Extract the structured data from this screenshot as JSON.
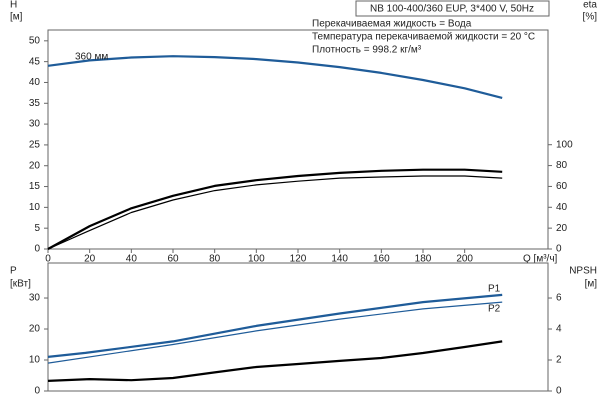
{
  "chart_data": [
    {
      "type": "line",
      "title": "NB 100-400/360 EUP, 3*400 V, 50Hz",
      "info": [
        "Перекачиваемая жидкость = Вода",
        "Температура перекачиваемой жидкости = 20 °C",
        "Плотность = 998.2 кг/м³"
      ],
      "y_label": "H",
      "y_unit": "[м]",
      "y2_label": "eta",
      "y2_unit": "[%]",
      "x_label": "Q [м³/ч]",
      "annotations": [
        {
          "text": "360 мм"
        }
      ],
      "xlim": [
        0,
        240
      ],
      "xticks": [
        0,
        20,
        40,
        60,
        80,
        100,
        120,
        140,
        160,
        180,
        200
      ],
      "ylim": [
        0,
        52.6
      ],
      "yticks": [
        0,
        5,
        10,
        15,
        20,
        25,
        30,
        35,
        40,
        45,
        50
      ],
      "y2lim": [
        0,
        210
      ],
      "y2ticks": [
        0,
        20,
        40,
        60,
        80,
        100
      ],
      "grid": false,
      "series": [
        {
          "color": "#1f5c99",
          "x": [
            0,
            20,
            40,
            60,
            80,
            100,
            120,
            140,
            160,
            180,
            200,
            218
          ],
          "values": [
            44,
            45.3,
            46,
            46.3,
            46.1,
            45.6,
            44.8,
            43.7,
            42.3,
            40.6,
            38.6,
            36.3
          ]
        },
        {
          "color": "#000000",
          "axis": "y2",
          "x": [
            0,
            20,
            40,
            60,
            80,
            100,
            120,
            140,
            160,
            180,
            200,
            218
          ],
          "values": [
            0,
            22,
            39,
            51,
            60.5,
            66,
            70,
            73,
            75,
            76,
            76,
            74
          ]
        },
        {
          "color": "#000000",
          "axis": "y2",
          "x": [
            0,
            18,
            40,
            60,
            80,
            100,
            120,
            140,
            160,
            180,
            200,
            218
          ],
          "values": [
            0,
            16,
            35,
            47,
            56,
            61.5,
            65,
            68,
            69,
            70,
            70,
            68
          ]
        }
      ]
    },
    {
      "type": "line",
      "y_label": "P",
      "y_unit": "[кВт]",
      "y2_label": "NPSH",
      "y2_unit": "[м]",
      "xlim": [
        0,
        240
      ],
      "ylim": [
        0,
        41.3
      ],
      "yticks": [
        0,
        10,
        20,
        30
      ],
      "y2lim": [
        0,
        8.26
      ],
      "y2ticks": [
        0,
        2,
        4,
        6
      ],
      "grid": false,
      "series": [
        {
          "name": "P1",
          "color": "#1f5c99",
          "x": [
            0,
            18,
            60,
            100,
            140,
            180,
            218
          ],
          "values": [
            11,
            12.3,
            16,
            21,
            25,
            28.7,
            31
          ]
        },
        {
          "name": "P2",
          "color": "#1f5c99",
          "x": [
            0,
            60,
            100,
            140,
            180,
            218
          ],
          "values": [
            9,
            15,
            19.4,
            23.2,
            26.5,
            28.7
          ]
        },
        {
          "color": "#000000",
          "axis": "y2",
          "x": [
            0,
            20,
            40,
            60,
            80,
            100,
            120,
            140,
            160,
            180,
            200,
            218
          ],
          "values": [
            0.65,
            0.77,
            0.7,
            0.84,
            1.2,
            1.55,
            1.74,
            1.94,
            2.13,
            2.45,
            2.84,
            3.2
          ]
        }
      ]
    }
  ]
}
